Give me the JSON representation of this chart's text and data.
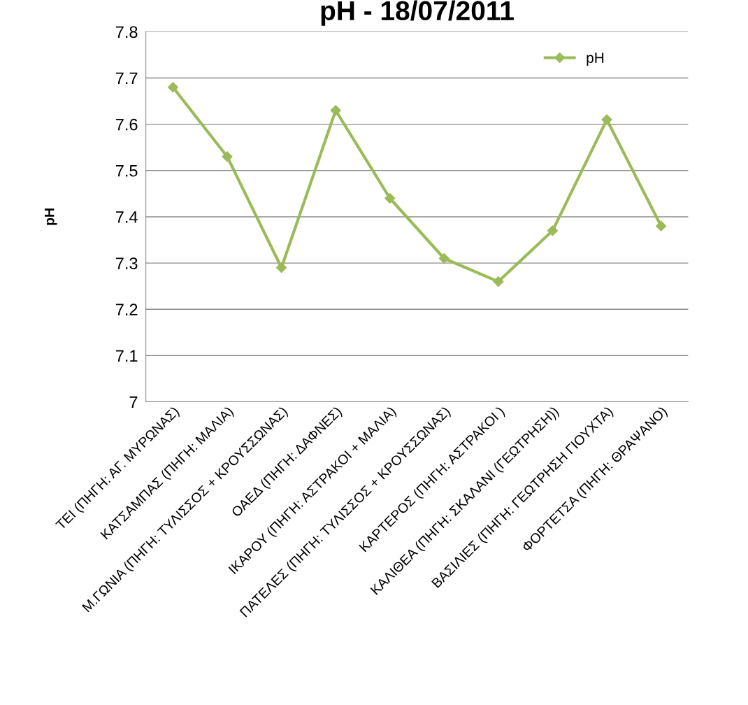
{
  "chart_data": {
    "type": "line",
    "title": "pH - 18/07/2011",
    "ylabel": "pH",
    "categories": [
      "ΤΕΙ (ΠΗΓΗ: ΑΓ. ΜΥΡΩΝΑΣ)",
      "ΚΑΤΣΑΜΠΑΣ (ΠΗΓΗ: ΜΑΛΙΑ)",
      "Μ.ΓΩΝΙΑ (ΠΗΓΗ: ΤΥΛΙΣΣΟΣ + ΚΡΟΥΣΣΩΝΑΣ)",
      "ΟΑΕΔ (ΠΗΓΗ: ΔΑΦΝΕΣ)",
      "ΙΚΑΡΟΥ (ΠΗΓΗ: ΑΣΤΡΑΚΟΙ + ΜΑΛΙΑ)",
      "ΠΑΤΕΛΕΣ (ΠΗΓΗ: ΤΥΛΙΣΣΟΣ + ΚΡΟΥΣΣΩΝΑΣ)",
      "ΚΑΡΤΕΡΟΣ (ΠΗΓΗ: ΑΣΤΡΑΚΟΙ )",
      "ΚΑΛΙΘΕΑ (ΠΗΓΗ: ΣΚΑΛΑΝΙ (ΓΕΩΤΡΗΣΗ))",
      "ΒΑΣΙΛΙΕΣ (ΠΗΓΗ: ΓΕΩΤΡΗΣΗ ΓΙΟΥΧΤΑ)",
      "ΦΟΡΤΕΤΣΑ (ΠΗΓΗ: ΘΡΑΨΑΝΟ)"
    ],
    "series": [
      {
        "name": "pH",
        "color": "#9bbb59",
        "values": [
          7.68,
          7.53,
          7.29,
          7.63,
          7.44,
          7.31,
          7.26,
          7.37,
          7.61,
          7.38
        ]
      }
    ],
    "ylim": [
      7,
      7.8
    ],
    "yticks": [
      7,
      7.1,
      7.2,
      7.3,
      7.4,
      7.5,
      7.6,
      7.7,
      7.8
    ],
    "grid": "y",
    "legend": "top right",
    "marker": "diamond",
    "line_style": "solid"
  }
}
